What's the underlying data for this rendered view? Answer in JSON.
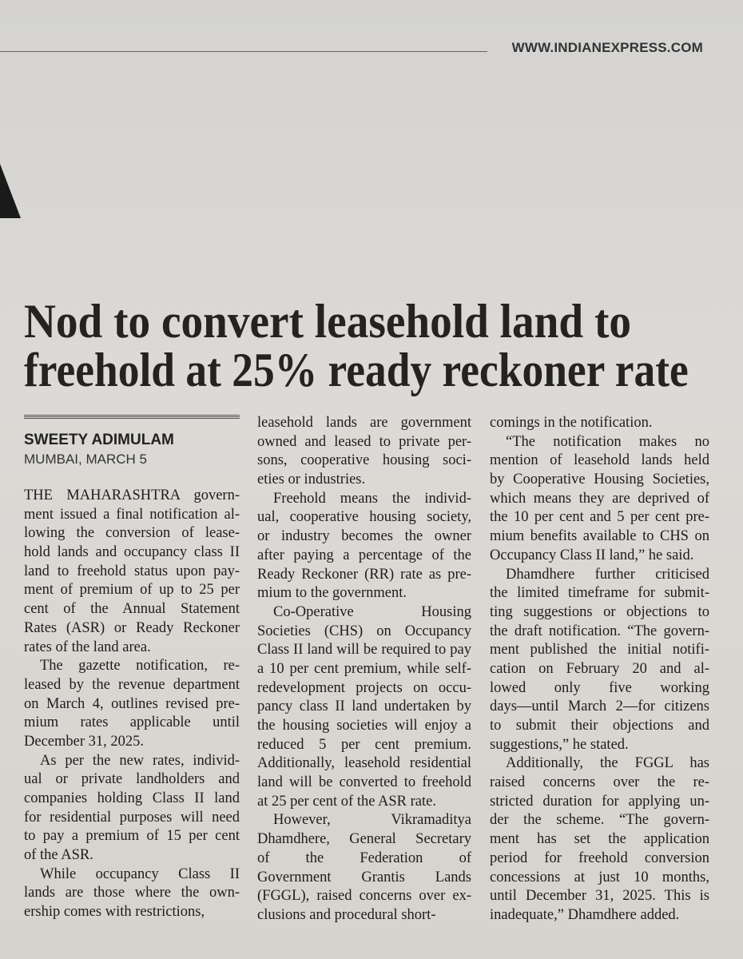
{
  "header": {
    "site": "WWW.INDIANEXPRESS.COM"
  },
  "article": {
    "headline": [
      "Nod to convert leasehold land to",
      "freehold at 25% ready reckoner rate"
    ],
    "byline": {
      "author": "SWEETY ADIMULAM",
      "dateline": "MUMBAI, MARCH 5"
    },
    "columns": [
      {
        "paragraphs": [
          [
            "THE MAHARASHTRA govern-",
            "ment issued a final notification al-",
            "lowing the conversion of lease-",
            "hold lands and occupancy class II",
            "land to freehold status upon pay-",
            "ment of premium of up to 25 per",
            "cent of the Annual Statement",
            "Rates (ASR) or Ready Reckoner",
            "rates of the land area."
          ],
          [
            "The gazette notification, re-",
            "leased by the revenue department",
            "on March 4, outlines revised pre-",
            "mium rates applicable until",
            "December 31, 2025."
          ],
          [
            "As per the new rates, individ-",
            "ual or private landholders and",
            "companies holding Class II land",
            "for residential purposes will need",
            "to pay a premium of 15 per cent",
            "of the ASR."
          ],
          [
            "While occupancy Class II",
            "lands are those where the own-",
            "ership comes with restrictions,"
          ]
        ]
      },
      {
        "paragraphs": [
          [
            "leasehold lands are government",
            "owned and leased to private per-",
            "sons, cooperative housing soci-",
            "eties or industries."
          ],
          [
            "Freehold means the individ-",
            "ual, cooperative housing society,",
            "or industry becomes the owner",
            "after paying a percentage of the",
            "Ready Reckoner (RR) rate as pre-",
            "mium to the government."
          ],
          [
            "Co-Operative Housing",
            "Societies (CHS) on Occupancy",
            "Class II land will be required to pay",
            "a 10 per cent premium, while self-",
            "redevelopment projects on occu-",
            "pancy class II land undertaken by",
            "the housing societies will enjoy a",
            "reduced 5 per cent premium.",
            "Additionally, leasehold residential",
            "land will be converted to freehold",
            "at 25 per cent of the ASR rate."
          ],
          [
            "However, Vikramaditya",
            "Dhamdhere, General Secretary",
            "of the Federation of",
            "Government Grantis Lands",
            "(FGGL), raised concerns over ex-",
            "clusions and procedural short-"
          ]
        ]
      },
      {
        "paragraphs": [
          [
            "comings in the notification."
          ],
          [
            "“The notification makes no",
            "mention of leasehold lands held",
            "by Cooperative Housing Societies,",
            "which means they are deprived of",
            "the 10 per cent and 5 per cent pre-",
            "mium benefits available to CHS on",
            "Occupancy Class II land,” he said."
          ],
          [
            "Dhamdhere further criticised",
            "the limited timeframe for submit-",
            "ting suggestions or objections to",
            "the draft notification. “The govern-",
            "ment published the initial notifi-",
            "cation on February 20 and al-",
            "lowed only five working",
            "days—until March 2—for citizens",
            "to submit their objections and",
            "suggestions,” he stated."
          ],
          [
            "Additionally, the FGGL has",
            "raised concerns over the re-",
            "stricted duration for applying un-",
            "der the scheme. “The govern-",
            "ment has set the application",
            "period for freehold conversion",
            "concessions at just 10 months,",
            "until December 31, 2025. This is",
            "inadequate,” Dhamdhere added."
          ]
        ]
      }
    ]
  }
}
